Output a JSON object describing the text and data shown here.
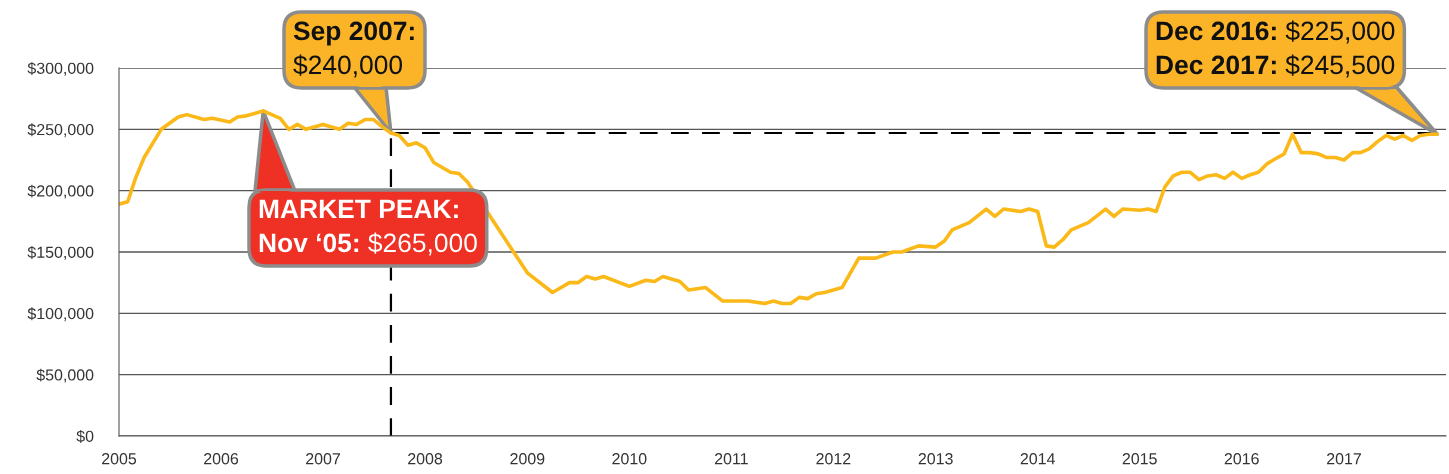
{
  "chart_data": {
    "type": "line",
    "x": [
      "2005-01",
      "2005-02",
      "2005-03",
      "2005-04",
      "2005-06",
      "2005-08",
      "2005-09",
      "2005-11",
      "2005-12",
      "2006-02",
      "2006-03",
      "2006-04",
      "2006-06",
      "2006-08",
      "2006-09",
      "2006-10",
      "2006-11",
      "2007-01",
      "2007-03",
      "2007-04",
      "2007-05",
      "2007-06",
      "2007-07",
      "2007-08",
      "2007-09",
      "2007-10",
      "2007-11",
      "2007-12",
      "2008-01",
      "2008-02",
      "2008-04",
      "2008-05",
      "2008-06",
      "2009-01",
      "2009-04",
      "2009-06",
      "2009-07",
      "2009-08",
      "2009-09",
      "2009-10",
      "2010-01",
      "2010-03",
      "2010-04",
      "2010-05",
      "2010-07",
      "2010-08",
      "2010-10",
      "2010-12",
      "2011-03",
      "2011-05",
      "2011-06",
      "2011-07",
      "2011-08",
      "2011-09",
      "2011-10",
      "2011-11",
      "2011-12",
      "2012-02",
      "2012-04",
      "2012-06",
      "2012-08",
      "2012-09",
      "2012-11",
      "2013-01",
      "2013-02",
      "2013-03",
      "2013-05",
      "2013-07",
      "2013-08",
      "2013-09",
      "2013-11",
      "2013-12",
      "2014-01",
      "2014-02",
      "2014-03",
      "2014-04",
      "2014-05",
      "2014-07",
      "2014-09",
      "2014-10",
      "2014-11",
      "2015-01",
      "2015-02",
      "2015-03",
      "2015-04",
      "2015-05",
      "2015-06",
      "2015-07",
      "2015-08",
      "2015-09",
      "2015-10",
      "2015-11",
      "2015-12",
      "2016-01",
      "2016-02",
      "2016-03",
      "2016-04",
      "2016-05",
      "2016-06",
      "2016-07",
      "2016-08",
      "2016-09",
      "2016-10",
      "2016-11",
      "2016-12",
      "2017-01",
      "2017-02",
      "2017-03",
      "2017-04",
      "2017-05",
      "2017-06",
      "2017-07",
      "2017-08",
      "2017-09",
      "2017-10",
      "2017-11",
      "2017-12"
    ],
    "series": [
      {
        "color": "#fbb919",
        "values": [
          189000,
          191000,
          210000,
          227000,
          250000,
          260000,
          262000,
          258000,
          259000,
          256000,
          260000,
          261000,
          265000,
          259000,
          250000,
          254000,
          250000,
          254000,
          250000,
          255000,
          254000,
          258000,
          258000,
          252000,
          247000,
          245000,
          237000,
          239000,
          235000,
          223000,
          215000,
          214000,
          207000,
          133000,
          117000,
          125000,
          125000,
          130000,
          128000,
          130000,
          122000,
          127000,
          126000,
          130000,
          126000,
          119000,
          121000,
          110000,
          110000,
          108000,
          110000,
          108000,
          108000,
          113000,
          112000,
          116000,
          117000,
          121000,
          145000,
          145000,
          150000,
          150000,
          155000,
          154000,
          159000,
          168000,
          174000,
          185000,
          179000,
          185000,
          183000,
          185000,
          183000,
          155000,
          154000,
          160000,
          168000,
          174000,
          185000,
          179000,
          185000,
          184000,
          185000,
          183000,
          203000,
          212000,
          215000,
          215000,
          209000,
          212000,
          213000,
          210000,
          215000,
          210000,
          213000,
          215000,
          222000,
          226000,
          230000,
          246000,
          231000,
          231000,
          230000,
          227000,
          227000,
          225000,
          231000,
          231000,
          234000,
          240000,
          245000,
          242000,
          245000,
          241000,
          245000,
          246000,
          246000
        ]
      }
    ],
    "xlim": [
      "2005-01-01",
      "2018-01-01"
    ],
    "xticks": [
      {
        "value": "2005",
        "label": "2005"
      },
      {
        "value": "2006",
        "label": "2006"
      },
      {
        "value": "2007",
        "label": "2007"
      },
      {
        "value": "2008",
        "label": "2008"
      },
      {
        "value": "2009",
        "label": "2009"
      },
      {
        "value": "2010",
        "label": "2010"
      },
      {
        "value": "2011",
        "label": "2011"
      },
      {
        "value": "2012",
        "label": "2012"
      },
      {
        "value": "2013",
        "label": "2013"
      },
      {
        "value": "2014",
        "label": "2014"
      },
      {
        "value": "2015",
        "label": "2015"
      },
      {
        "value": "2016",
        "label": "2016"
      },
      {
        "value": "2017",
        "label": "2017"
      }
    ],
    "ylim": [
      0,
      300000
    ],
    "yticks": [
      {
        "value": 0,
        "label": "$0"
      },
      {
        "value": 50000,
        "label": "$50,000"
      },
      {
        "value": 100000,
        "label": "$100,000"
      },
      {
        "value": 150000,
        "label": "$150,000"
      },
      {
        "value": 200000,
        "label": "$200,000"
      },
      {
        "value": 250000,
        "label": "$250,000"
      },
      {
        "value": 300000,
        "label": "$300,000"
      }
    ],
    "grid": "y",
    "ref_lines": [
      {
        "axis": "x",
        "value": "2007-09",
        "color": "#000000",
        "line_style": "dashed"
      },
      {
        "axis": "y",
        "value": 247000,
        "color": "#000000",
        "line_style": "dashed"
      }
    ],
    "annotations": [
      {
        "text": "Sep 2007:\n$240,000",
        "x": "2007-09",
        "y": 247000
      },
      {
        "text": "MARKET PEAK:\nNov ‘05: $265,000",
        "x": "2006-06",
        "y": 265000
      },
      {
        "text": "Dec 2016: $225,000\nDec 2017: $245,500",
        "x": "2017-12",
        "y": 246000
      }
    ]
  }
}
